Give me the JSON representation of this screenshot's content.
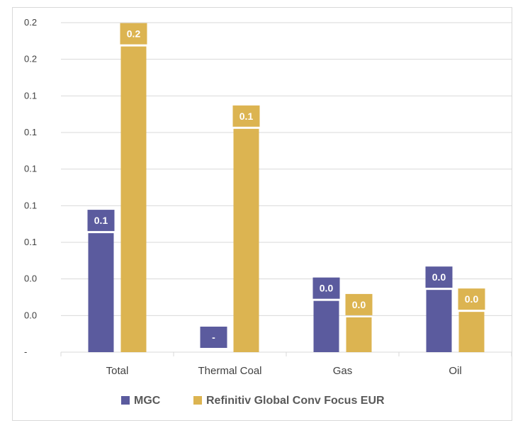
{
  "chart_data": {
    "type": "bar",
    "categories": [
      "Total",
      "Thermal Coal",
      "Gas",
      "Oil"
    ],
    "series": [
      {
        "name": "MGC",
        "values": [
          0.065,
          0.0,
          0.028,
          0.034
        ],
        "labels": [
          "0.1",
          "-",
          "0.0",
          "0.0"
        ],
        "color": "#5b5b9e"
      },
      {
        "name": "Refinitiv Global Conv Focus EUR",
        "values": [
          0.167,
          0.122,
          0.019,
          0.022
        ],
        "labels": [
          "0.2",
          "0.1",
          "0.0",
          "0.0"
        ],
        "color": "#dcb451"
      }
    ],
    "y_ticks": [
      0.0,
      0.02,
      0.04,
      0.06,
      0.08,
      0.1,
      0.12,
      0.14,
      0.16,
      0.18
    ],
    "y_tick_labels": [
      "-",
      "0.0",
      "0.0",
      "0.1",
      "0.1",
      "0.1",
      "0.1",
      "0.1",
      "0.2",
      "0.2"
    ],
    "ylim": [
      0,
      0.18
    ],
    "grid": true,
    "legend_position": "bottom",
    "title": "",
    "xlabel": "",
    "ylabel": ""
  }
}
